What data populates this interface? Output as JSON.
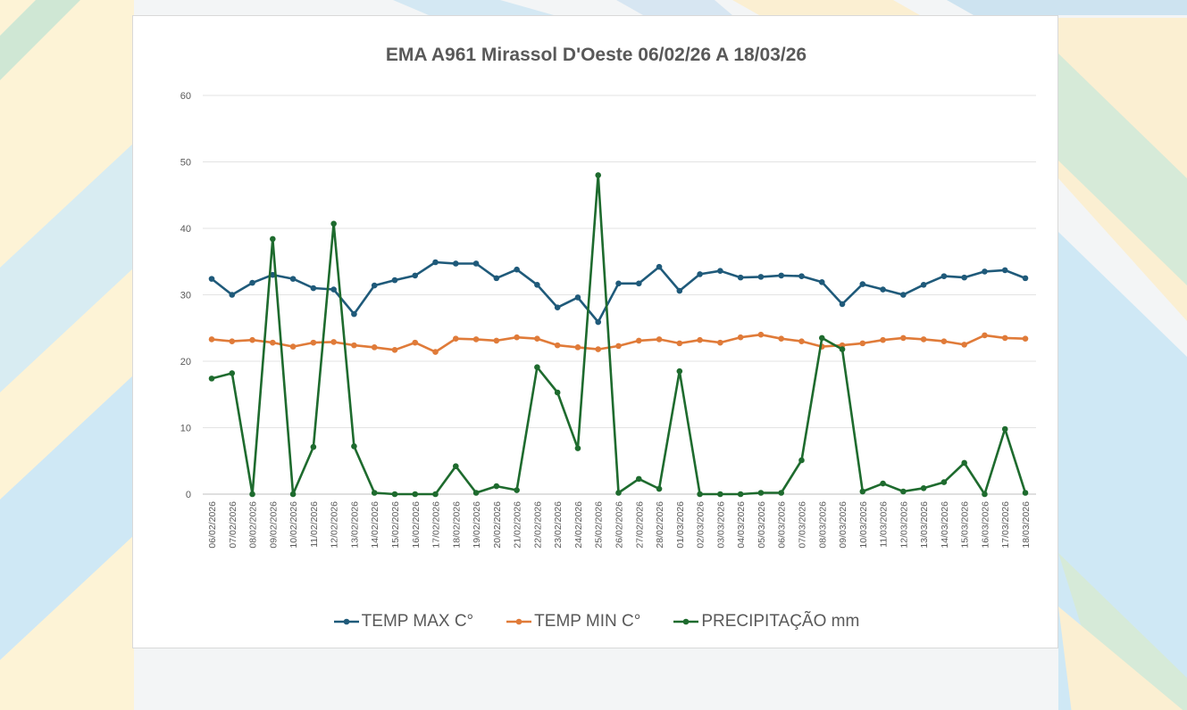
{
  "chart_data": {
    "type": "line",
    "title": "EMA A961 Mirassol D'Oeste 06/02/26 A 18/03/26",
    "xlabel": "",
    "ylabel": "",
    "ylim": [
      0,
      60
    ],
    "yticks": [
      0,
      10,
      20,
      30,
      40,
      50,
      60
    ],
    "grid": true,
    "legend_position": "bottom",
    "categories": [
      "06/02/2026",
      "07/02/2026",
      "08/02/2026",
      "09/02/2026",
      "10/02/2026",
      "11/02/2026",
      "12/02/2026",
      "13/02/2026",
      "14/02/2026",
      "15/02/2026",
      "16/02/2026",
      "17/02/2026",
      "18/02/2026",
      "19/02/2026",
      "20/02/2026",
      "21/02/2026",
      "22/02/2026",
      "23/02/2026",
      "24/02/2026",
      "25/02/2026",
      "26/02/2026",
      "27/02/2026",
      "28/02/2026",
      "01/03/2026",
      "02/03/2026",
      "03/03/2026",
      "04/03/2026",
      "05/03/2026",
      "06/03/2026",
      "07/03/2026",
      "08/03/2026",
      "09/03/2026",
      "10/03/2026",
      "11/03/2026",
      "12/03/2026",
      "13/03/2026",
      "14/03/2026",
      "15/03/2026",
      "16/03/2026",
      "17/03/2026",
      "18/03/2026"
    ],
    "series": [
      {
        "name": "TEMP MAX C°",
        "color": "#1f5a7a",
        "values": [
          32.4,
          30.0,
          31.8,
          33.0,
          32.4,
          31.0,
          30.8,
          27.1,
          31.4,
          32.2,
          32.9,
          34.9,
          34.7,
          34.7,
          32.5,
          33.8,
          31.5,
          28.1,
          29.6,
          25.9,
          31.7,
          31.7,
          34.2,
          30.6,
          33.1,
          33.6,
          32.6,
          32.7,
          32.9,
          32.8,
          31.9,
          28.6,
          31.6,
          30.8,
          30.0,
          31.5,
          32.8,
          32.6,
          33.5,
          33.7,
          32.5
        ]
      },
      {
        "name": "TEMP MIN C°",
        "color": "#e07b39",
        "values": [
          23.3,
          23.0,
          23.2,
          22.8,
          22.2,
          22.8,
          22.9,
          22.4,
          22.1,
          21.7,
          22.8,
          21.4,
          23.4,
          23.3,
          23.1,
          23.6,
          23.4,
          22.4,
          22.1,
          21.8,
          22.3,
          23.1,
          23.3,
          22.7,
          23.2,
          22.8,
          23.6,
          24.0,
          23.4,
          23.0,
          22.2,
          22.4,
          22.7,
          23.2,
          23.5,
          23.3,
          23.0,
          22.5,
          23.9,
          23.5,
          23.4
        ]
      },
      {
        "name": "PRECIPITAÇÃO mm",
        "color": "#1e6b2e",
        "values": [
          17.4,
          18.2,
          0.0,
          38.4,
          0.0,
          7.1,
          40.7,
          7.2,
          0.2,
          0.0,
          0.0,
          0.0,
          4.2,
          0.2,
          1.2,
          0.6,
          19.1,
          15.3,
          6.9,
          48.0,
          0.2,
          2.3,
          0.8,
          18.5,
          0.0,
          0.0,
          0.0,
          0.2,
          0.2,
          5.1,
          23.5,
          21.8,
          0.4,
          1.6,
          0.4,
          0.9,
          1.8,
          4.7,
          0.0,
          9.8,
          0.2
        ]
      }
    ]
  }
}
